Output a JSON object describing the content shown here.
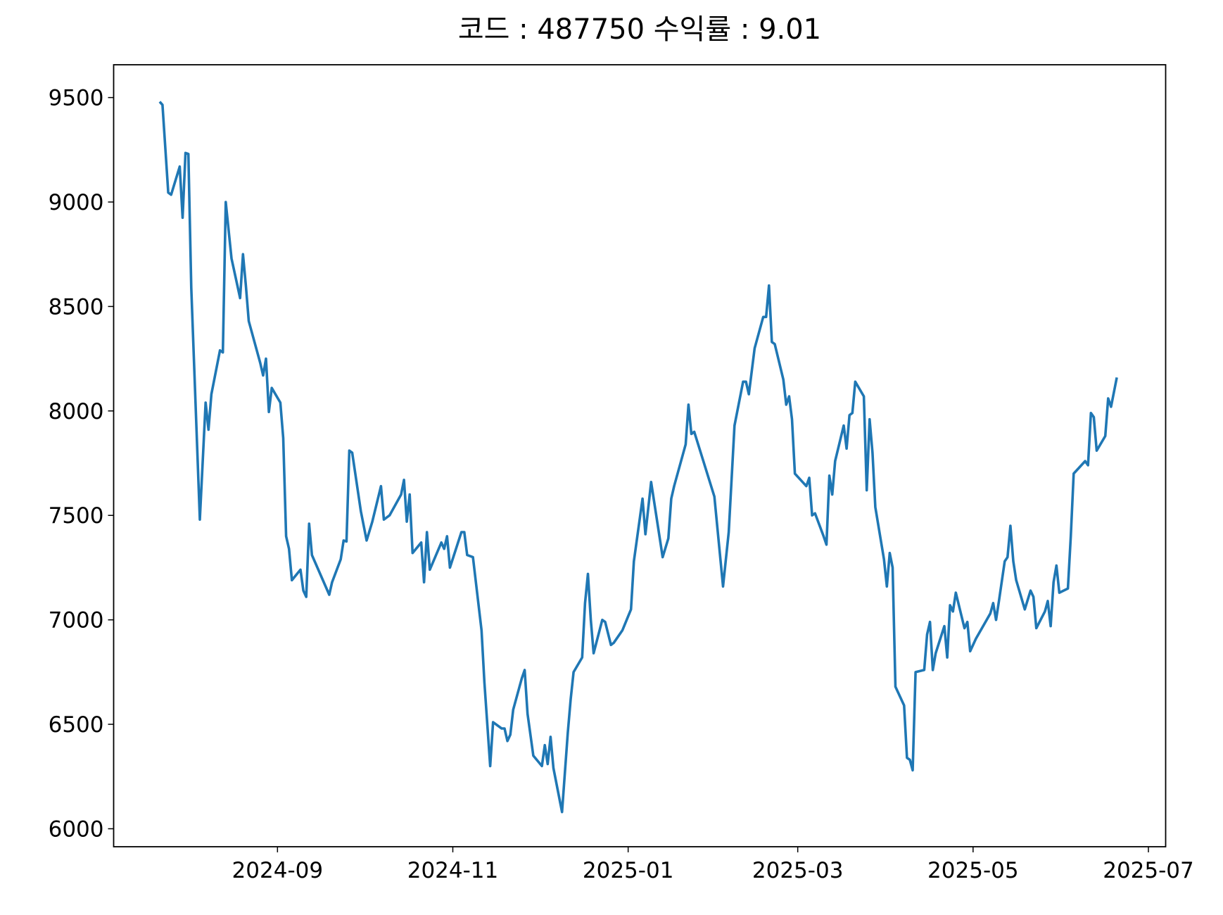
{
  "chart_data": {
    "type": "line",
    "title": "코드 : 487750 수익률 : 9.01",
    "x": [
      "2024-07-22",
      "2024-07-23",
      "2024-07-25",
      "2024-07-26",
      "2024-07-29",
      "2024-07-30",
      "2024-07-31",
      "2024-08-01",
      "2024-08-02",
      "2024-08-05",
      "2024-08-07",
      "2024-08-08",
      "2024-08-09",
      "2024-08-12",
      "2024-08-13",
      "2024-08-14",
      "2024-08-16",
      "2024-08-19",
      "2024-08-20",
      "2024-08-21",
      "2024-08-22",
      "2024-08-26",
      "2024-08-27",
      "2024-08-28",
      "2024-08-29",
      "2024-08-30",
      "2024-09-02",
      "2024-09-03",
      "2024-09-04",
      "2024-09-05",
      "2024-09-06",
      "2024-09-09",
      "2024-09-10",
      "2024-09-11",
      "2024-09-12",
      "2024-09-13",
      "2024-09-19",
      "2024-09-20",
      "2024-09-23",
      "2024-09-24",
      "2024-09-25",
      "2024-09-26",
      "2024-09-27",
      "2024-09-30",
      "2024-10-02",
      "2024-10-04",
      "2024-10-07",
      "2024-10-08",
      "2024-10-10",
      "2024-10-14",
      "2024-10-15",
      "2024-10-16",
      "2024-10-17",
      "2024-10-18",
      "2024-10-21",
      "2024-10-22",
      "2024-10-23",
      "2024-10-24",
      "2024-10-28",
      "2024-10-29",
      "2024-10-30",
      "2024-10-31",
      "2024-11-04",
      "2024-11-05",
      "2024-11-06",
      "2024-11-08",
      "2024-11-11",
      "2024-11-12",
      "2024-11-14",
      "2024-11-15",
      "2024-11-18",
      "2024-11-19",
      "2024-11-20",
      "2024-11-21",
      "2024-11-22",
      "2024-11-25",
      "2024-11-26",
      "2024-11-27",
      "2024-11-29",
      "2024-12-02",
      "2024-12-03",
      "2024-12-04",
      "2024-12-05",
      "2024-12-06",
      "2024-12-09",
      "2024-12-11",
      "2024-12-12",
      "2024-12-13",
      "2024-12-16",
      "2024-12-17",
      "2024-12-18",
      "2024-12-19",
      "2024-12-20",
      "2024-12-23",
      "2024-12-24",
      "2024-12-26",
      "2024-12-27",
      "2024-12-30",
      "2025-01-02",
      "2025-01-03",
      "2025-01-06",
      "2025-01-07",
      "2025-01-09",
      "2025-01-13",
      "2025-01-15",
      "2025-01-16",
      "2025-01-17",
      "2025-01-20",
      "2025-01-21",
      "2025-01-22",
      "2025-01-23",
      "2025-01-24",
      "2025-01-31",
      "2025-02-03",
      "2025-02-05",
      "2025-02-07",
      "2025-02-10",
      "2025-02-11",
      "2025-02-12",
      "2025-02-14",
      "2025-02-17",
      "2025-02-18",
      "2025-02-19",
      "2025-02-20",
      "2025-02-21",
      "2025-02-24",
      "2025-02-25",
      "2025-02-26",
      "2025-02-27",
      "2025-02-28",
      "2025-03-04",
      "2025-03-05",
      "2025-03-06",
      "2025-03-07",
      "2025-03-10",
      "2025-03-11",
      "2025-03-12",
      "2025-03-13",
      "2025-03-14",
      "2025-03-17",
      "2025-03-18",
      "2025-03-19",
      "2025-03-20",
      "2025-03-21",
      "2025-03-24",
      "2025-03-25",
      "2025-03-26",
      "2025-03-27",
      "2025-03-28",
      "2025-03-31",
      "2025-04-01",
      "2025-04-02",
      "2025-04-03",
      "2025-04-04",
      "2025-04-07",
      "2025-04-08",
      "2025-04-09",
      "2025-04-10",
      "2025-04-11",
      "2025-04-14",
      "2025-04-15",
      "2025-04-16",
      "2025-04-17",
      "2025-04-18",
      "2025-04-21",
      "2025-04-22",
      "2025-04-23",
      "2025-04-24",
      "2025-04-25",
      "2025-04-28",
      "2025-04-29",
      "2025-04-30",
      "2025-05-02",
      "2025-05-07",
      "2025-05-08",
      "2025-05-09",
      "2025-05-10",
      "2025-05-12",
      "2025-05-13",
      "2025-05-14",
      "2025-05-15",
      "2025-05-16",
      "2025-05-19",
      "2025-05-21",
      "2025-05-22",
      "2025-05-23",
      "2025-05-26",
      "2025-05-27",
      "2025-05-28",
      "2025-05-29",
      "2025-05-30",
      "2025-05-31",
      "2025-06-03",
      "2025-06-04",
      "2025-06-05",
      "2025-06-09",
      "2025-06-10",
      "2025-06-11",
      "2025-06-12",
      "2025-06-13",
      "2025-06-16",
      "2025-06-17",
      "2025-06-18",
      "2025-06-20"
    ],
    "values": [
      9480,
      9465,
      9045,
      9035,
      9170,
      8925,
      9235,
      9230,
      8590,
      7480,
      8040,
      7910,
      8080,
      8290,
      8280,
      9000,
      8730,
      8540,
      8750,
      8600,
      8430,
      8230,
      8170,
      8250,
      7995,
      8110,
      8040,
      7870,
      7400,
      7340,
      7190,
      7240,
      7140,
      7110,
      7460,
      7310,
      7120,
      7180,
      7290,
      7380,
      7375,
      7810,
      7800,
      7520,
      7380,
      7470,
      7640,
      7480,
      7500,
      7600,
      7670,
      7470,
      7600,
      7320,
      7370,
      7180,
      7420,
      7240,
      7370,
      7340,
      7400,
      7250,
      7420,
      7420,
      7310,
      7300,
      6950,
      6700,
      6300,
      6510,
      6480,
      6480,
      6420,
      6450,
      6570,
      6720,
      6760,
      6550,
      6350,
      6300,
      6400,
      6310,
      6440,
      6290,
      6080,
      6460,
      6620,
      6750,
      6820,
      7080,
      7220,
      7000,
      6840,
      7000,
      6990,
      6880,
      6890,
      6950,
      7050,
      7280,
      7580,
      7410,
      7660,
      7300,
      7390,
      7580,
      7640,
      7790,
      7840,
      8030,
      7890,
      7900,
      7590,
      7160,
      7420,
      7930,
      8140,
      8140,
      8080,
      8300,
      8450,
      8450,
      8600,
      8330,
      8320,
      8150,
      8030,
      8070,
      7960,
      7700,
      7640,
      7680,
      7500,
      7510,
      7400,
      7360,
      7690,
      7600,
      7760,
      7930,
      7820,
      7980,
      7990,
      8140,
      8070,
      7620,
      7960,
      7800,
      7540,
      7290,
      7160,
      7320,
      7250,
      6680,
      6590,
      6340,
      6330,
      6280,
      6750,
      6760,
      6930,
      6990,
      6760,
      6840,
      6970,
      6820,
      7070,
      7040,
      7130,
      6960,
      6990,
      6850,
      6910,
      7030,
      7080,
      7000,
      7090,
      7280,
      7300,
      7450,
      7280,
      7190,
      7050,
      7140,
      7110,
      6960,
      7040,
      7090,
      6970,
      7180,
      7260,
      7130,
      7150,
      7400,
      7700,
      7760,
      7740,
      7990,
      7970,
      7810,
      7880,
      8060,
      8020,
      8160
    ],
    "color": "#1f77b4",
    "xlim": [
      "2024-07-06",
      "2025-07-07"
    ],
    "xticks": [
      "2024-09",
      "2024-11",
      "2025-01",
      "2025-03",
      "2025-05",
      "2025-07"
    ],
    "ylim": [
      5914,
      9657
    ],
    "yticks": [
      6000,
      6500,
      7000,
      7500,
      8000,
      8500,
      9000,
      9500
    ]
  }
}
